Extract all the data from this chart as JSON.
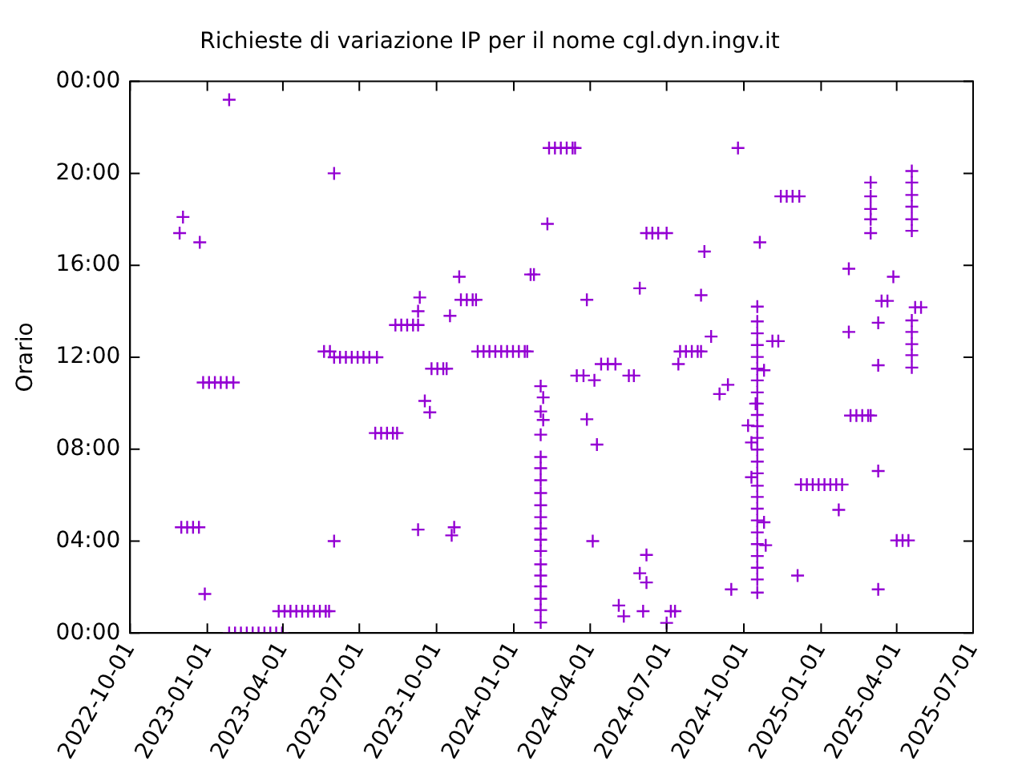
{
  "chart_data": {
    "type": "scatter",
    "title": "Richieste di variazione IP per il nome cgl.dyn.ingv.it",
    "ylabel": "Orario",
    "xlim": [
      "2022-10-01",
      "2025-07-01"
    ],
    "xticks": [
      "2022-10-01",
      "2023-01-01",
      "2023-04-01",
      "2023-07-01",
      "2023-10-01",
      "2024-01-01",
      "2024-04-01",
      "2024-07-01",
      "2024-10-01",
      "2025-01-01",
      "2025-04-01",
      "2025-07-01"
    ],
    "ylim": [
      0,
      24
    ],
    "yticks": [
      {
        "value": 0,
        "label": "00:00"
      },
      {
        "value": 4,
        "label": "04:00"
      },
      {
        "value": 8,
        "label": "08:00"
      },
      {
        "value": 12,
        "label": "12:00"
      },
      {
        "value": 16,
        "label": "16:00"
      },
      {
        "value": 20,
        "label": "20:00"
      },
      {
        "value": 24,
        "label": "00:00"
      }
    ],
    "grid": false,
    "legend": false,
    "marker": "cross",
    "series": [
      {
        "color": "#9400d3",
        "x": [
          "2022-12-01",
          "2022-12-08",
          "2022-12-15",
          "2022-12-22",
          "2022-12-03",
          "2022-11-29",
          "2022-12-23",
          "2022-12-27",
          "2023-01-03",
          "2023-01-10",
          "2023-01-17",
          "2023-01-24",
          "2023-02-01",
          "2022-12-29",
          "2023-01-27",
          "2023-01-27",
          "2023-02-03",
          "2023-02-10",
          "2023-02-17",
          "2023-02-24",
          "2023-03-03",
          "2023-03-10",
          "2023-03-17",
          "2023-03-24",
          "2023-03-31",
          "2023-03-27",
          "2023-04-03",
          "2023-04-10",
          "2023-04-17",
          "2023-04-24",
          "2023-05-01",
          "2023-05-08",
          "2023-05-15",
          "2023-05-22",
          "2023-05-26",
          "2023-05-20",
          "2023-05-27",
          "2023-06-01",
          "2023-06-08",
          "2023-06-15",
          "2023-06-22",
          "2023-06-29",
          "2023-07-06",
          "2023-07-13",
          "2023-07-22",
          "2023-06-01",
          "2023-06-01",
          "2023-07-20",
          "2023-07-27",
          "2023-08-03",
          "2023-08-10",
          "2023-08-15",
          "2023-08-13",
          "2023-08-20",
          "2023-08-27",
          "2023-09-03",
          "2023-09-09",
          "2023-09-11",
          "2023-09-09",
          "2023-09-09",
          "2023-09-17",
          "2023-09-23",
          "2023-09-25",
          "2023-10-02",
          "2023-10-09",
          "2023-10-13",
          "2023-10-17",
          "2023-10-19",
          "2023-10-22",
          "2023-10-28",
          "2023-10-30",
          "2023-11-06",
          "2023-11-13",
          "2023-11-17",
          "2023-11-19",
          "2023-11-26",
          "2023-12-03",
          "2023-12-10",
          "2023-12-17",
          "2023-12-24",
          "2023-12-31",
          "2024-01-07",
          "2024-01-14",
          "2024-01-17",
          "2024-01-21",
          "2024-01-25",
          "2024-02-02",
          "2024-02-02",
          "2024-02-02",
          "2024-02-02",
          "2024-02-02",
          "2024-02-02",
          "2024-02-02",
          "2024-02-02",
          "2024-02-02",
          "2024-02-02",
          "2024-02-02",
          "2024-02-02",
          "2024-02-02",
          "2024-02-02",
          "2024-02-02",
          "2024-02-02",
          "2024-02-02",
          "2024-02-02",
          "2024-02-05",
          "2024-02-05",
          "2024-02-10",
          "2024-02-12",
          "2024-02-19",
          "2024-02-26",
          "2024-03-04",
          "2024-03-11",
          "2024-03-14",
          "2024-03-16",
          "2024-03-24",
          "2024-03-28",
          "2024-03-28",
          "2024-04-04",
          "2024-04-06",
          "2024-04-09",
          "2024-04-14",
          "2024-04-22",
          "2024-05-01",
          "2024-05-05",
          "2024-05-11",
          "2024-05-17",
          "2024-05-23",
          "2024-05-30",
          "2024-05-30",
          "2024-06-03",
          "2024-06-07",
          "2024-06-14",
          "2024-06-21",
          "2024-07-01",
          "2024-06-07",
          "2024-06-07",
          "2024-07-01",
          "2024-07-06",
          "2024-07-11",
          "2024-07-15",
          "2024-07-17",
          "2024-07-24",
          "2024-07-31",
          "2024-08-07",
          "2024-08-11",
          "2024-08-11",
          "2024-08-15",
          "2024-08-23",
          "2024-09-02",
          "2024-09-12",
          "2024-09-16",
          "2024-09-24",
          "2024-10-15",
          "2024-10-06",
          "2024-10-10",
          "2024-10-10",
          "2024-10-17",
          "2024-10-17",
          "2024-10-17",
          "2024-10-17",
          "2024-10-17",
          "2024-10-17",
          "2024-10-17",
          "2024-10-17",
          "2024-10-17",
          "2024-10-17",
          "2024-10-17",
          "2024-10-17",
          "2024-10-17",
          "2024-10-17",
          "2024-10-17",
          "2024-10-17",
          "2024-10-17",
          "2024-10-17",
          "2024-10-17",
          "2024-10-17",
          "2024-10-17",
          "2024-10-17",
          "2024-10-17",
          "2024-10-17",
          "2024-10-17",
          "2024-10-20",
          "2024-10-25",
          "2024-10-25",
          "2024-10-27",
          "2024-11-04",
          "2024-11-11",
          "2024-11-14",
          "2024-11-21",
          "2024-11-28",
          "2024-12-06",
          "2024-12-04",
          "2024-12-08",
          "2024-12-15",
          "2024-12-22",
          "2024-12-29",
          "2025-01-05",
          "2025-01-12",
          "2025-01-19",
          "2025-01-26",
          "2025-01-22",
          "2025-02-03",
          "2025-02-03",
          "2025-02-05",
          "2025-02-12",
          "2025-02-19",
          "2025-02-26",
          "2025-03-01",
          "2025-03-01",
          "2025-03-01",
          "2025-03-01",
          "2025-03-01",
          "2025-03-01",
          "2025-03-10",
          "2025-03-10",
          "2025-03-10",
          "2025-03-10",
          "2025-03-14",
          "2025-03-21",
          "2025-03-28",
          "2025-04-01",
          "2025-04-08",
          "2025-04-15",
          "2025-04-19",
          "2025-04-19",
          "2025-04-19",
          "2025-04-19",
          "2025-04-19",
          "2025-04-19",
          "2025-04-19",
          "2025-04-19",
          "2025-04-19",
          "2025-04-19",
          "2025-04-19",
          "2025-04-23",
          "2025-04-30"
        ],
        "values": [
          4.6,
          4.6,
          4.6,
          4.6,
          18.1,
          17.4,
          17.0,
          10.9,
          10.9,
          10.9,
          10.9,
          10.9,
          10.9,
          1.7,
          23.2,
          0,
          0,
          0,
          0,
          0,
          0,
          0,
          0,
          0,
          0,
          0.95,
          0.95,
          0.95,
          0.95,
          0.95,
          0.95,
          0.95,
          0.95,
          0.95,
          0.95,
          12.25,
          12.25,
          12.0,
          12.0,
          12.0,
          12.0,
          12.0,
          12.0,
          12.0,
          12.0,
          20.0,
          4.0,
          8.7,
          8.7,
          8.7,
          8.7,
          8.7,
          13.4,
          13.4,
          13.4,
          13.4,
          13.4,
          14.6,
          14.0,
          4.5,
          10.1,
          9.6,
          11.5,
          11.5,
          11.5,
          11.5,
          13.8,
          4.25,
          4.6,
          15.5,
          14.5,
          14.5,
          14.5,
          14.5,
          12.25,
          12.25,
          12.25,
          12.25,
          12.25,
          12.25,
          12.25,
          12.25,
          12.25,
          12.25,
          15.6,
          15.6,
          10.74,
          9.64,
          8.63,
          7.66,
          7.17,
          6.65,
          6.09,
          5.56,
          5.04,
          4.55,
          4.06,
          3.57,
          2.99,
          2.5,
          2.03,
          1.49,
          1.0,
          0.46,
          10.25,
          9.27,
          17.8,
          21.1,
          21.1,
          21.1,
          21.1,
          21.1,
          21.1,
          11.2,
          11.2,
          14.5,
          9.3,
          4.0,
          11.0,
          8.2,
          11.7,
          11.7,
          11.7,
          1.2,
          0.73,
          11.2,
          11.2,
          15.0,
          2.6,
          0.95,
          17.4,
          17.4,
          17.4,
          17.4,
          3.4,
          2.2,
          0.44,
          0.95,
          0.95,
          11.7,
          12.25,
          12.25,
          12.25,
          12.25,
          12.25,
          14.7,
          16.6,
          12.9,
          10.4,
          10.8,
          1.9,
          21.1,
          9.98,
          9.03,
          8.29,
          6.78,
          14.2,
          13.56,
          13.04,
          12.53,
          12.01,
          11.5,
          10.99,
          10.47,
          9.98,
          9.49,
          9.0,
          8.49,
          7.98,
          7.46,
          6.95,
          6.41,
          5.92,
          5.41,
          4.9,
          4.38,
          3.87,
          3.35,
          2.84,
          2.33,
          1.76,
          17.0,
          11.43,
          4.82,
          3.82,
          12.7,
          12.7,
          19.0,
          19.0,
          19.0,
          19.0,
          2.5,
          6.46,
          6.46,
          6.46,
          6.46,
          6.46,
          6.46,
          6.46,
          6.46,
          5.36,
          15.85,
          13.1,
          9.46,
          9.46,
          9.46,
          9.46,
          9.46,
          19.6,
          19.0,
          18.45,
          18.0,
          17.4,
          13.5,
          11.65,
          7.05,
          1.9,
          14.45,
          14.45,
          15.5,
          4.03,
          4.03,
          4.03,
          20.1,
          19.6,
          19.06,
          18.55,
          18.0,
          17.5,
          13.6,
          13.1,
          12.57,
          12.09,
          11.55,
          14.17,
          14.17
        ]
      }
    ]
  }
}
